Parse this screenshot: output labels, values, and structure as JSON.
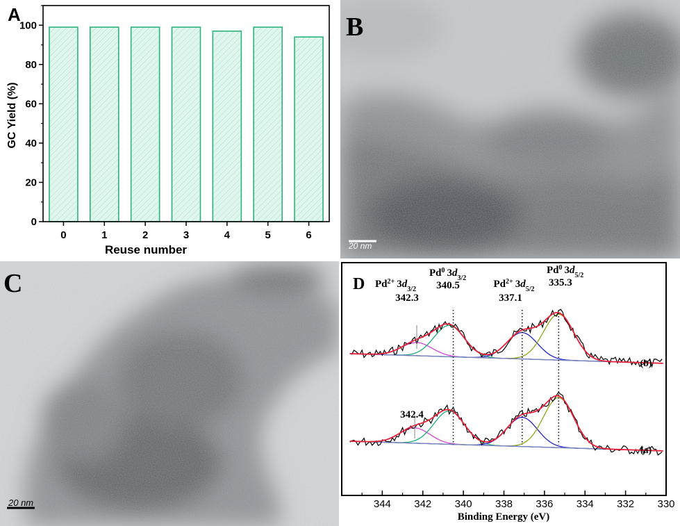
{
  "chart_data": [
    {
      "panel": "A",
      "type": "bar",
      "xlabel": "Reuse number",
      "ylabel": "GC Yield (%)",
      "ylim": [
        0,
        110
      ],
      "yticks": [
        0,
        20,
        40,
        60,
        80,
        100
      ],
      "categories": [
        "0",
        "1",
        "2",
        "3",
        "4",
        "5",
        "6"
      ],
      "values": [
        99,
        99,
        99,
        99,
        97,
        99,
        94
      ],
      "colors": {
        "bar_edge": "#2ab37a",
        "bar_fill": "#dff5ee"
      }
    },
    {
      "panel": "D",
      "type": "line",
      "xlabel": "Binding Energy (eV)",
      "xlim": [
        346,
        330
      ],
      "xticks": [
        344,
        342,
        340,
        338,
        336,
        334,
        332,
        330
      ],
      "series_labels": {
        "top": "(b)",
        "bottom": "(a)"
      },
      "peaks": [
        {
          "ion": "Pd",
          "charge": "2+",
          "level": "3d",
          "sub": "3/2",
          "b": 342.3,
          "a": 342.4
        },
        {
          "ion": "Pd",
          "charge": "0",
          "level": "3d",
          "sub": "3/2",
          "b": 340.5,
          "a": 340.5
        },
        {
          "ion": "Pd",
          "charge": "2+",
          "level": "3d",
          "sub": "5/2",
          "b": 337.1,
          "a": 337.1
        },
        {
          "ion": "Pd",
          "charge": "0",
          "level": "3d",
          "sub": "5/2",
          "b": 335.3,
          "a": 335.3
        }
      ],
      "colors": {
        "raw": "#000000",
        "envelope": "#e8203a",
        "pd2_32": "#d346d6",
        "pd0_32": "#1cae7a",
        "pd2_52": "#2222c8",
        "pd0_52": "#8fa81a",
        "baseline": "#7a86c0"
      }
    }
  ],
  "images": [
    {
      "panel": "B",
      "scale_bar": "20 nm"
    },
    {
      "panel": "C",
      "scale_bar": "20 nm"
    }
  ]
}
